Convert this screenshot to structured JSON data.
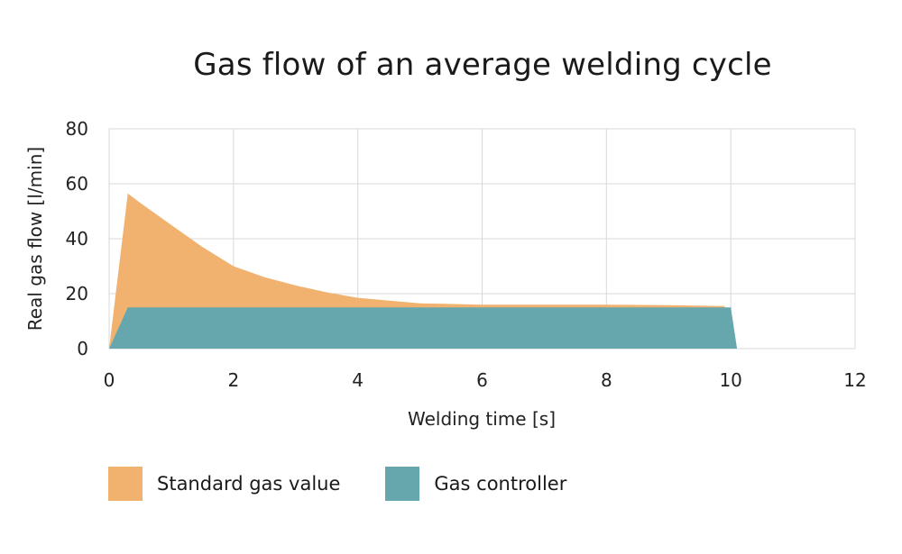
{
  "chart_data": {
    "type": "area",
    "title": "Gas flow of an average welding cycle",
    "xlabel": "Welding time [s]",
    "ylabel": "Real gas flow [l/min]",
    "xlim": [
      0,
      12
    ],
    "ylim": [
      0,
      80
    ],
    "xticks": [
      "0",
      "2",
      "4",
      "6",
      "8",
      "10",
      "12"
    ],
    "yticks": [
      "0",
      "20",
      "40",
      "60",
      "80"
    ],
    "grid": true,
    "legend_position": "bottom-left",
    "series": [
      {
        "name": "Standard gas value",
        "color": "#F0B26E",
        "x": [
          0,
          0.3,
          0.5,
          1,
          1.5,
          2,
          2.5,
          3,
          3.5,
          4,
          5,
          6,
          7,
          8,
          9,
          9.9,
          10.0
        ],
        "y": [
          0,
          56.5,
          53,
          45,
          37,
          30,
          26,
          23,
          20.5,
          18.5,
          16.5,
          16,
          16,
          16,
          15.8,
          15.5,
          0
        ]
      },
      {
        "name": "Gas controller",
        "color": "#66A7AE",
        "x": [
          0,
          0.3,
          10.0,
          10.1
        ],
        "y": [
          0,
          15,
          15,
          0
        ]
      }
    ]
  }
}
